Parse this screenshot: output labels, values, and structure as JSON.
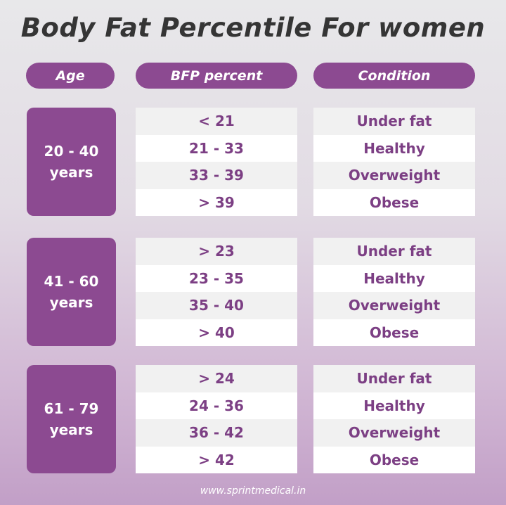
{
  "title": "Body Fat Percentile For women",
  "headers": [
    "Age",
    "BFP percent",
    "Condition"
  ],
  "groups": [
    {
      "age": [
        "20 - 40",
        "years"
      ],
      "rows": [
        [
          "< 21",
          "Under fat"
        ],
        [
          "21 - 33",
          "Healthy"
        ],
        [
          "33 - 39",
          "Overweight"
        ],
        [
          "> 39",
          "Obese"
        ]
      ]
    },
    {
      "age": [
        "41 - 60",
        "years"
      ],
      "rows": [
        [
          "> 23",
          "Under fat"
        ],
        [
          "23 - 35",
          "Healthy"
        ],
        [
          "35 - 40",
          "Overweight"
        ],
        [
          "> 40",
          "Obese"
        ]
      ]
    },
    {
      "age": [
        "61 - 79",
        "years"
      ],
      "rows": [
        [
          "> 24",
          "Under fat"
        ],
        [
          "24 - 36",
          "Healthy"
        ],
        [
          "36 - 42",
          "Overweight"
        ],
        [
          "> 42",
          "Obese"
        ]
      ]
    }
  ],
  "footer": "www.sprintmedical.in"
}
